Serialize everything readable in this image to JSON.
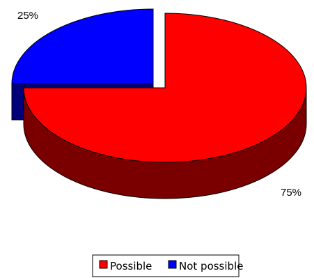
{
  "chart_data": {
    "type": "pie",
    "style": "3d-exploded",
    "slices": [
      {
        "label": "Possible",
        "value": 75,
        "value_label": "75%",
        "color": "#ff0000",
        "side_color": "#7a0000"
      },
      {
        "label": "Not possible",
        "value": 25,
        "value_label": "25%",
        "color": "#0000ff",
        "side_color": "#00007a"
      }
    ],
    "legend": {
      "position": "bottom",
      "items": [
        {
          "name": "Possible",
          "color": "#ff0000"
        },
        {
          "name": "Not possible",
          "color": "#0000ff"
        }
      ]
    }
  }
}
